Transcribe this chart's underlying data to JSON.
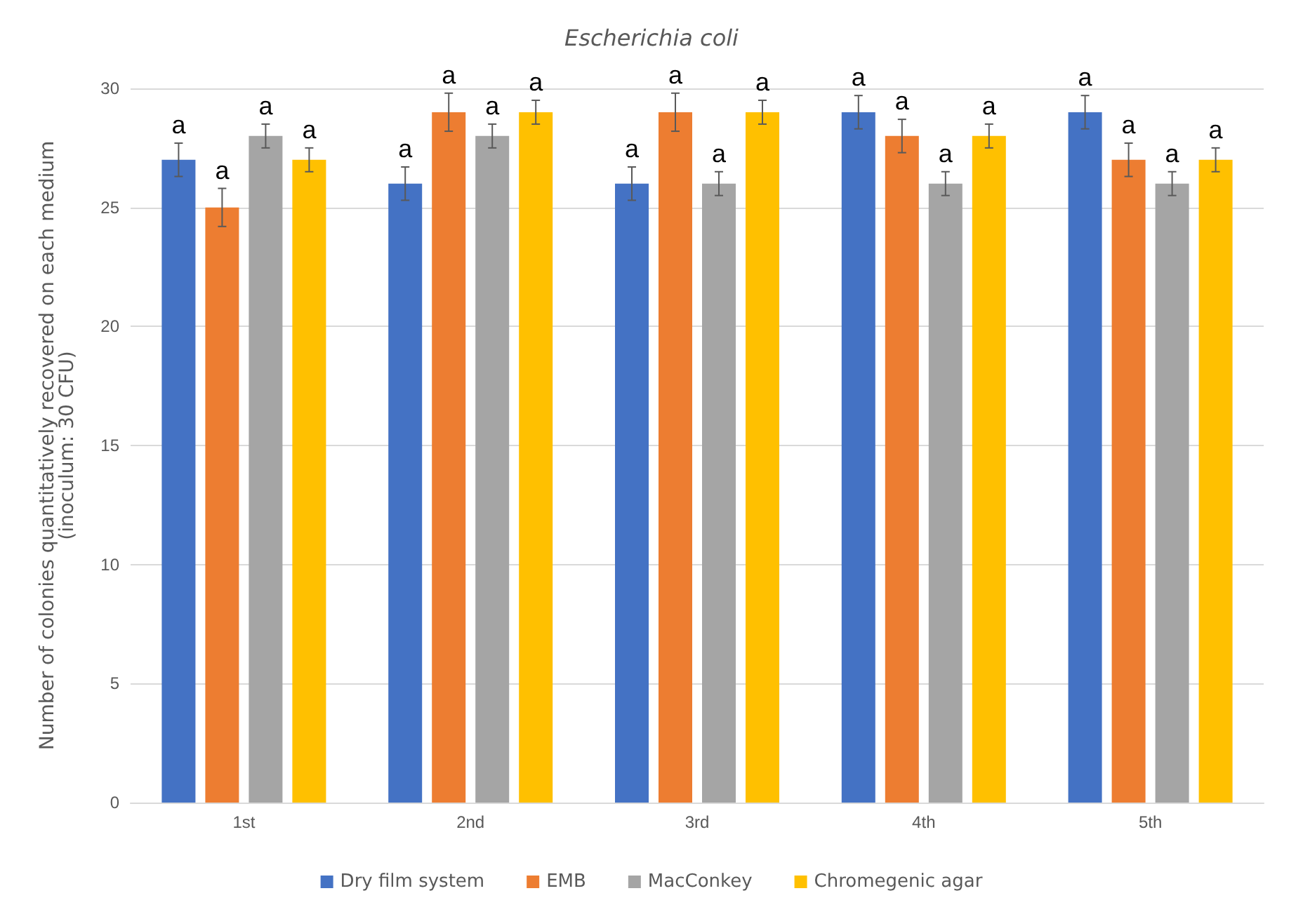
{
  "chart_data": {
    "type": "bar",
    "title": "Escherichia coli",
    "ylabel": "Number of colonies quantitatively recovered on each medium\n(inoculum: 30 CFU)",
    "categories": [
      "1st",
      "2nd",
      "3rd",
      "4th",
      "5th"
    ],
    "series": [
      {
        "name": "Dry film system",
        "color": "#4472c4",
        "values": [
          27,
          26,
          26,
          29,
          29
        ],
        "errors": [
          0.7,
          0.7,
          0.7,
          0.7,
          0.7
        ],
        "value_labels": [
          "a",
          "a",
          "a",
          "a",
          "a"
        ]
      },
      {
        "name": "EMB",
        "color": "#ed7d31",
        "values": [
          25,
          29,
          29,
          28,
          27
        ],
        "errors": [
          0.8,
          0.8,
          0.8,
          0.7,
          0.7
        ],
        "value_labels": [
          "a",
          "a",
          "a",
          "a",
          "a"
        ]
      },
      {
        "name": "MacConkey",
        "color": "#a5a5a5",
        "values": [
          28,
          28,
          26,
          26,
          26
        ],
        "errors": [
          0.5,
          0.5,
          0.5,
          0.5,
          0.5
        ],
        "value_labels": [
          "a",
          "a",
          "a",
          "a",
          "a"
        ]
      },
      {
        "name": "Chromegenic agar",
        "color": "#ffc000",
        "values": [
          27,
          29,
          29,
          28,
          27
        ],
        "errors": [
          0.5,
          0.5,
          0.5,
          0.5,
          0.5
        ],
        "value_labels": [
          "a",
          "a",
          "a",
          "a",
          "a"
        ]
      }
    ],
    "ylim": [
      0,
      30
    ],
    "yticks": [
      0,
      5,
      10,
      15,
      20,
      25,
      30
    ],
    "grid": "y",
    "legend": "bottom"
  }
}
